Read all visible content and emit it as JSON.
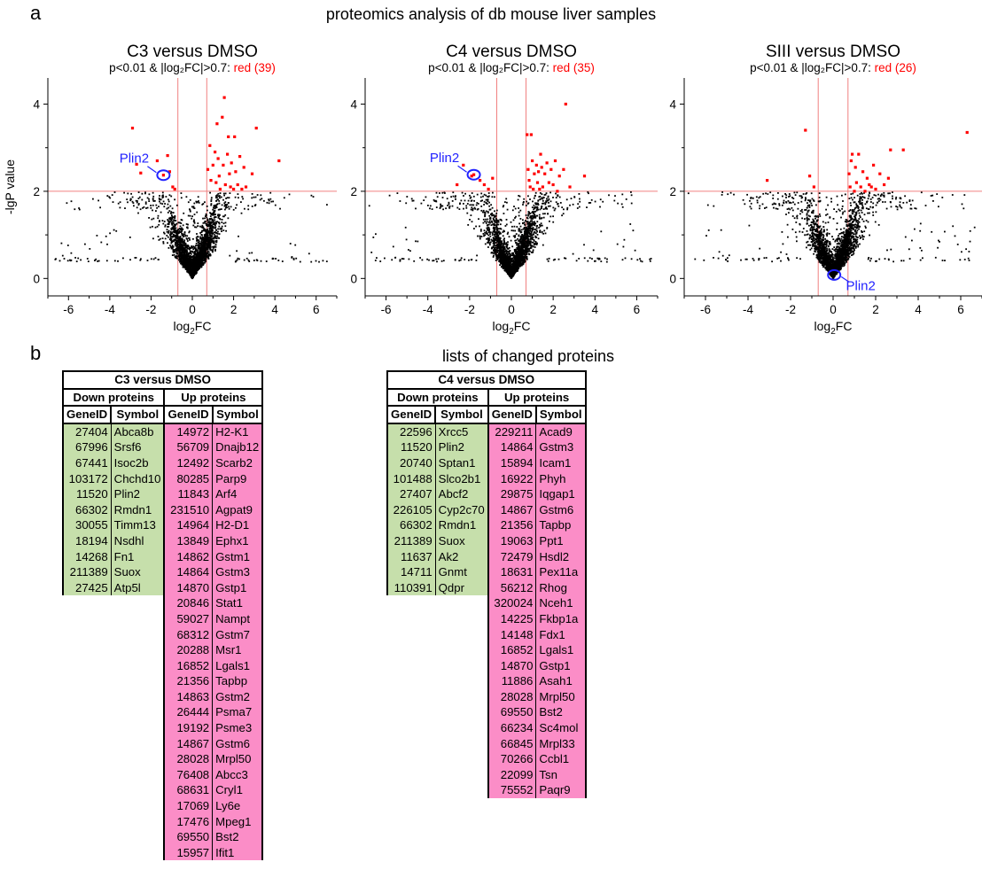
{
  "panel_a": {
    "letter": "a",
    "title": "proteomics analysis of db mouse liver samples",
    "ylabel": "-lgP value",
    "xlabel_base": "log",
    "xlabel_sub": "2",
    "xlabel_tail": "FC",
    "threshold_text": "p<0.01 & |log₂FC|>0.7:",
    "colors": {
      "sig": "#ff0000",
      "nonsig": "#000000",
      "threshold": "#f08080",
      "highlight": "#2222ff"
    }
  },
  "chart_data": [
    {
      "type": "scatter",
      "title": "C3 versus DMSO",
      "red_label": "red (39)",
      "xlim": [
        -7,
        7
      ],
      "ylim": [
        -0.4,
        4.6
      ],
      "xticks": [
        -6,
        -4,
        -2,
        0,
        2,
        4,
        6
      ],
      "yticks": [
        0,
        2,
        4
      ],
      "thresholds": {
        "x": [
          -0.7,
          0.7
        ],
        "y": 2
      },
      "annotation": {
        "text": "Plin2",
        "x": -1.4,
        "y": 2.37
      },
      "red_points": [
        [
          -2.9,
          3.45
        ],
        [
          -2.7,
          2.62
        ],
        [
          -2.5,
          2.42
        ],
        [
          -1.7,
          2.7
        ],
        [
          -1.2,
          2.82
        ],
        [
          -1.1,
          2.45
        ],
        [
          -0.95,
          2.1
        ],
        [
          -0.85,
          2.05
        ],
        [
          0.75,
          2.5
        ],
        [
          0.85,
          3.05
        ],
        [
          0.9,
          2.25
        ],
        [
          1.0,
          2.6
        ],
        [
          1.1,
          2.9
        ],
        [
          1.15,
          2.2
        ],
        [
          1.2,
          3.55
        ],
        [
          1.25,
          2.75
        ],
        [
          1.3,
          2.35
        ],
        [
          1.35,
          2.05
        ],
        [
          1.45,
          3.7
        ],
        [
          1.5,
          2.6
        ],
        [
          1.55,
          4.15
        ],
        [
          1.6,
          2.15
        ],
        [
          1.7,
          2.85
        ],
        [
          1.75,
          3.25
        ],
        [
          1.8,
          2.4
        ],
        [
          1.85,
          2.1
        ],
        [
          1.9,
          2.65
        ],
        [
          2.0,
          2.05
        ],
        [
          2.05,
          3.25
        ],
        [
          2.1,
          2.45
        ],
        [
          2.2,
          2.15
        ],
        [
          2.3,
          2.8
        ],
        [
          2.4,
          2.05
        ],
        [
          2.5,
          2.55
        ],
        [
          2.6,
          2.1
        ],
        [
          2.9,
          2.4
        ],
        [
          3.1,
          3.45
        ],
        [
          4.2,
          2.7
        ],
        [
          -1.4,
          2.37
        ]
      ],
      "seed": 11
    },
    {
      "type": "scatter",
      "title": "C4 versus DMSO",
      "red_label": "red (35)",
      "xlim": [
        -7,
        7
      ],
      "ylim": [
        -0.4,
        4.6
      ],
      "xticks": [
        -6,
        -4,
        -2,
        0,
        2,
        4,
        6
      ],
      "yticks": [
        0,
        2,
        4
      ],
      "thresholds": {
        "x": [
          -0.7,
          0.7
        ],
        "y": 2
      },
      "annotation": {
        "text": "Plin2",
        "x": -1.8,
        "y": 2.38
      },
      "red_points": [
        [
          -2.6,
          2.15
        ],
        [
          -2.3,
          2.6
        ],
        [
          -1.9,
          2.35
        ],
        [
          -1.5,
          2.25
        ],
        [
          -1.3,
          2.15
        ],
        [
          -1.1,
          2.05
        ],
        [
          -0.9,
          2.3
        ],
        [
          0.75,
          3.3
        ],
        [
          0.8,
          2.5
        ],
        [
          0.85,
          2.25
        ],
        [
          0.9,
          2.1
        ],
        [
          0.95,
          3.3
        ],
        [
          1.0,
          2.7
        ],
        [
          1.05,
          2.05
        ],
        [
          1.1,
          2.4
        ],
        [
          1.2,
          2.6
        ],
        [
          1.25,
          2.2
        ],
        [
          1.3,
          2.45
        ],
        [
          1.35,
          2.05
        ],
        [
          1.4,
          2.85
        ],
        [
          1.45,
          2.55
        ],
        [
          1.5,
          2.1
        ],
        [
          1.6,
          2.4
        ],
        [
          1.7,
          2.65
        ],
        [
          1.8,
          2.2
        ],
        [
          1.9,
          2.5
        ],
        [
          2.0,
          2.15
        ],
        [
          2.1,
          2.7
        ],
        [
          2.2,
          2.0
        ],
        [
          2.3,
          2.35
        ],
        [
          2.5,
          2.5
        ],
        [
          2.6,
          4.0
        ],
        [
          2.8,
          2.1
        ],
        [
          3.5,
          2.35
        ],
        [
          -1.8,
          2.38
        ]
      ],
      "seed": 23
    },
    {
      "type": "scatter",
      "title": "SIII versus DMSO",
      "red_label": "red (26)",
      "xlim": [
        -7,
        7
      ],
      "ylim": [
        -0.4,
        4.6
      ],
      "xticks": [
        -6,
        -4,
        -2,
        0,
        2,
        4,
        6
      ],
      "yticks": [
        0,
        2,
        4
      ],
      "thresholds": {
        "x": [
          -0.7,
          0.7
        ],
        "y": 2
      },
      "annotation": {
        "text": "Plin2",
        "x": 0.05,
        "y": 0.08
      },
      "red_points": [
        [
          -3.1,
          2.25
        ],
        [
          -1.3,
          3.4
        ],
        [
          -1.1,
          2.35
        ],
        [
          -0.9,
          2.1
        ],
        [
          0.75,
          2.4
        ],
        [
          0.8,
          2.1
        ],
        [
          0.85,
          2.7
        ],
        [
          0.9,
          2.85
        ],
        [
          1.0,
          2.0
        ],
        [
          1.05,
          2.55
        ],
        [
          1.1,
          2.2
        ],
        [
          1.2,
          2.85
        ],
        [
          1.3,
          2.1
        ],
        [
          1.4,
          2.45
        ],
        [
          1.5,
          2.0
        ],
        [
          1.6,
          2.3
        ],
        [
          1.7,
          2.15
        ],
        [
          1.8,
          2.1
        ],
        [
          1.9,
          2.6
        ],
        [
          2.0,
          2.05
        ],
        [
          2.2,
          2.4
        ],
        [
          2.4,
          2.15
        ],
        [
          2.6,
          2.3
        ],
        [
          2.7,
          2.95
        ],
        [
          3.3,
          2.95
        ],
        [
          6.3,
          3.35
        ]
      ],
      "seed": 37
    }
  ],
  "panel_b": {
    "letter": "b",
    "title": "lists of changed proteins",
    "tables": [
      {
        "title": "C3 versus DMSO",
        "down_header": "Down proteins",
        "up_header": "Up proteins",
        "col_geneid": "GeneID",
        "col_symbol": "Symbol",
        "down": [
          [
            "27404",
            "Abca8b"
          ],
          [
            "67996",
            "Srsf6"
          ],
          [
            "67441",
            "Isoc2b"
          ],
          [
            "103172",
            "Chchd10"
          ],
          [
            "11520",
            "Plin2"
          ],
          [
            "66302",
            "Rmdn1"
          ],
          [
            "30055",
            "Timm13"
          ],
          [
            "18194",
            "Nsdhl"
          ],
          [
            "14268",
            "Fn1"
          ],
          [
            "211389",
            "Suox"
          ],
          [
            "27425",
            "Atp5l"
          ]
        ],
        "up": [
          [
            "14972",
            "H2-K1"
          ],
          [
            "56709",
            "Dnajb12"
          ],
          [
            "12492",
            "Scarb2"
          ],
          [
            "80285",
            "Parp9"
          ],
          [
            "11843",
            "Arf4"
          ],
          [
            "231510",
            "Agpat9"
          ],
          [
            "14964",
            "H2-D1"
          ],
          [
            "13849",
            "Ephx1"
          ],
          [
            "14862",
            "Gstm1"
          ],
          [
            "14864",
            "Gstm3"
          ],
          [
            "14870",
            "Gstp1"
          ],
          [
            "20846",
            "Stat1"
          ],
          [
            "59027",
            "Nampt"
          ],
          [
            "68312",
            "Gstm7"
          ],
          [
            "20288",
            "Msr1"
          ],
          [
            "16852",
            "Lgals1"
          ],
          [
            "21356",
            "Tapbp"
          ],
          [
            "14863",
            "Gstm2"
          ],
          [
            "26444",
            "Psma7"
          ],
          [
            "19192",
            "Psme3"
          ],
          [
            "14867",
            "Gstm6"
          ],
          [
            "28028",
            "Mrpl50"
          ],
          [
            "76408",
            "Abcc3"
          ],
          [
            "68631",
            "Cryl1"
          ],
          [
            "17069",
            "Ly6e"
          ],
          [
            "17476",
            "Mpeg1"
          ],
          [
            "69550",
            "Bst2"
          ],
          [
            "15957",
            "Ifit1"
          ]
        ]
      },
      {
        "title": "C4 versus DMSO",
        "down_header": "Down proteins",
        "up_header": "Up proteins",
        "col_geneid": "GeneID",
        "col_symbol": "Symbol",
        "down": [
          [
            "22596",
            "Xrcc5"
          ],
          [
            "11520",
            "Plin2"
          ],
          [
            "20740",
            "Sptan1"
          ],
          [
            "101488",
            "Slco2b1"
          ],
          [
            "27407",
            "Abcf2"
          ],
          [
            "226105",
            "Cyp2c70"
          ],
          [
            "66302",
            "Rmdn1"
          ],
          [
            "211389",
            "Suox"
          ],
          [
            "11637",
            "Ak2"
          ],
          [
            "14711",
            "Gnmt"
          ],
          [
            "110391",
            "Qdpr"
          ]
        ],
        "up": [
          [
            "229211",
            "Acad9"
          ],
          [
            "14864",
            "Gstm3"
          ],
          [
            "15894",
            "Icam1"
          ],
          [
            "16922",
            "Phyh"
          ],
          [
            "29875",
            "Iqgap1"
          ],
          [
            "14867",
            "Gstm6"
          ],
          [
            "21356",
            "Tapbp"
          ],
          [
            "19063",
            "Ppt1"
          ],
          [
            "72479",
            "Hsdl2"
          ],
          [
            "18631",
            "Pex11a"
          ],
          [
            "56212",
            "Rhog"
          ],
          [
            "320024",
            "Nceh1"
          ],
          [
            "14225",
            "Fkbp1a"
          ],
          [
            "14148",
            "Fdx1"
          ],
          [
            "16852",
            "Lgals1"
          ],
          [
            "14870",
            "Gstp1"
          ],
          [
            "11886",
            "Asah1"
          ],
          [
            "28028",
            "Mrpl50"
          ],
          [
            "69550",
            "Bst2"
          ],
          [
            "66234",
            "Sc4mol"
          ],
          [
            "66845",
            "Mrpl33"
          ],
          [
            "70266",
            "Ccbl1"
          ],
          [
            "22099",
            "Tsn"
          ],
          [
            "75552",
            "Paqr9"
          ]
        ]
      }
    ]
  }
}
